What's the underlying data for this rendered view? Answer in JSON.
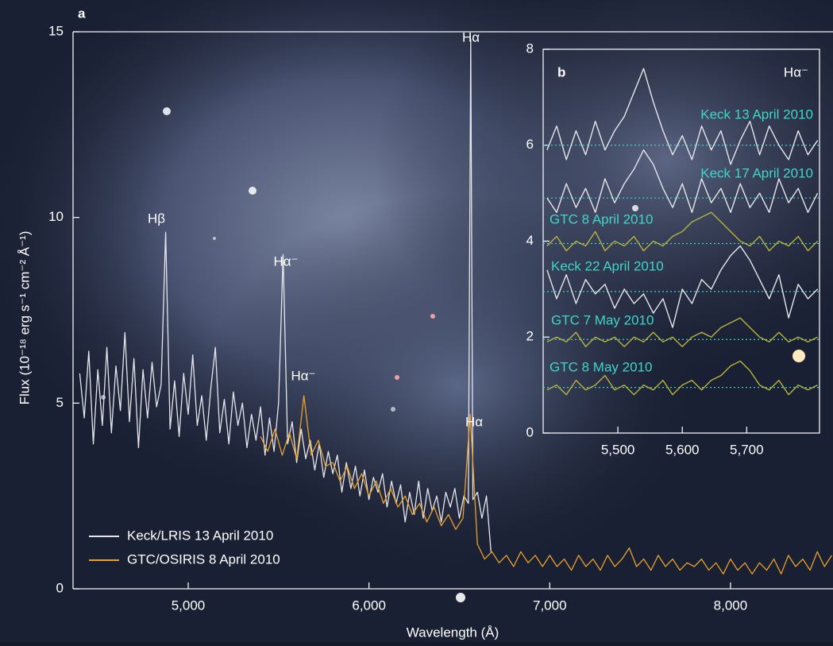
{
  "chart_data": [
    {
      "type": "line",
      "panel": "a",
      "x_label": "Wavelength (Å)",
      "y_label": "Flux (10⁻¹⁸ erg s⁻¹ cm⁻² Å⁻¹)",
      "xlim": [
        4363,
        8567
      ],
      "ylim": [
        0,
        15
      ],
      "xticks": [
        {
          "value": 5000,
          "label": "5,000"
        },
        {
          "value": 6000,
          "label": "6,000"
        },
        {
          "value": 7000,
          "label": "7,000"
        },
        {
          "value": 8000,
          "label": "8,000"
        }
      ],
      "yticks": [
        0,
        5,
        10,
        15
      ],
      "annotations": [
        "Hβ",
        "Hα⁻",
        "Hα",
        "Hα⁻",
        "Hα"
      ],
      "series": [
        {
          "name": "Keck/LRIS 13 April 2010",
          "color": "#e6e6ea",
          "x": [
            4400,
            4425,
            4450,
            4475,
            4500,
            4525,
            4550,
            4575,
            4600,
            4625,
            4650,
            4675,
            4700,
            4725,
            4750,
            4775,
            4800,
            4825,
            4850,
            4875,
            4900,
            4925,
            4950,
            4975,
            5000,
            5025,
            5050,
            5075,
            5100,
            5125,
            5150,
            5175,
            5200,
            5225,
            5250,
            5275,
            5300,
            5325,
            5350,
            5375,
            5400,
            5425,
            5450,
            5475,
            5500,
            5525,
            5550,
            5575,
            5600,
            5625,
            5650,
            5675,
            5700,
            5725,
            5750,
            5775,
            5800,
            5825,
            5850,
            5875,
            5900,
            5925,
            5950,
            5975,
            6000,
            6025,
            6050,
            6075,
            6100,
            6125,
            6150,
            6175,
            6200,
            6225,
            6250,
            6275,
            6300,
            6325,
            6350,
            6375,
            6400,
            6425,
            6450,
            6475,
            6500,
            6525,
            6550,
            6563,
            6575,
            6600,
            6625,
            6650,
            6675
          ],
          "values": [
            5.8,
            4.6,
            6.4,
            3.9,
            5.9,
            4.4,
            6.5,
            4.2,
            6.0,
            4.8,
            6.9,
            4.5,
            6.2,
            3.8,
            5.9,
            4.6,
            6.1,
            4.9,
            5.5,
            9.6,
            4.3,
            5.6,
            4.1,
            5.8,
            4.7,
            6.3,
            4.4,
            5.2,
            4.0,
            5.4,
            6.5,
            4.2,
            5.1,
            3.9,
            5.3,
            4.4,
            5.0,
            3.8,
            4.7,
            4.0,
            4.9,
            3.6,
            4.6,
            3.7,
            5.0,
            9.0,
            3.9,
            4.5,
            3.4,
            4.3,
            3.5,
            4.0,
            3.2,
            3.9,
            3.0,
            3.7,
            3.1,
            3.6,
            2.6,
            3.4,
            2.7,
            3.3,
            2.5,
            3.2,
            2.4,
            3.0,
            2.6,
            3.1,
            2.2,
            2.9,
            2.3,
            2.8,
            1.8,
            2.6,
            2.0,
            2.9,
            1.9,
            2.7,
            2.1,
            2.5,
            1.8,
            2.6,
            2.2,
            2.7,
            1.9,
            2.5,
            2.3,
            14.8,
            2.4,
            2.6,
            1.9,
            2.5,
            1.0
          ]
        },
        {
          "name": "GTC/OSIRIS 8 April 2010",
          "color": "#e8a12c",
          "x": [
            5400,
            5440,
            5480,
            5520,
            5560,
            5600,
            5640,
            5680,
            5720,
            5760,
            5800,
            5840,
            5880,
            5920,
            5960,
            6000,
            6040,
            6080,
            6120,
            6160,
            6200,
            6240,
            6280,
            6320,
            6360,
            6400,
            6440,
            6480,
            6520,
            6560,
            6600,
            6640,
            6680,
            6720,
            6760,
            6800,
            6840,
            6880,
            6920,
            6960,
            7000,
            7040,
            7080,
            7120,
            7160,
            7200,
            7240,
            7280,
            7320,
            7360,
            7400,
            7440,
            7480,
            7520,
            7560,
            7600,
            7640,
            7680,
            7720,
            7760,
            7800,
            7840,
            7880,
            7920,
            7960,
            8000,
            8040,
            8080,
            8120,
            8160,
            8200,
            8240,
            8280,
            8320,
            8360,
            8400,
            8440,
            8480,
            8520,
            8560
          ],
          "values": [
            4.1,
            3.7,
            4.3,
            3.6,
            4.2,
            3.5,
            5.2,
            3.6,
            4.0,
            3.3,
            3.4,
            2.9,
            3.3,
            2.7,
            3.1,
            2.5,
            2.9,
            2.3,
            2.7,
            2.2,
            2.5,
            2.0,
            2.3,
            1.8,
            2.2,
            1.7,
            2.0,
            1.6,
            1.9,
            4.7,
            1.2,
            0.8,
            1.0,
            0.7,
            0.9,
            0.6,
            1.0,
            0.7,
            0.9,
            0.6,
            0.9,
            0.6,
            0.8,
            0.5,
            0.9,
            0.6,
            0.8,
            0.5,
            0.9,
            0.6,
            0.8,
            1.1,
            0.6,
            0.8,
            0.5,
            0.9,
            0.6,
            0.8,
            0.5,
            0.7,
            0.6,
            0.8,
            0.5,
            0.7,
            0.4,
            0.8,
            0.5,
            0.7,
            0.4,
            0.7,
            0.5,
            0.8,
            0.4,
            0.9,
            0.6,
            0.8,
            0.5,
            1.0,
            0.6,
            0.9
          ]
        }
      ]
    },
    {
      "type": "line",
      "panel": "b",
      "annotations": [
        "Hα⁻"
      ],
      "xlim": [
        5384,
        5813
      ],
      "ylim": [
        0,
        8
      ],
      "xticks": [
        {
          "value": 5500,
          "label": "5,500"
        },
        {
          "value": 5600,
          "label": "5,600"
        },
        {
          "value": 5700,
          "label": "5,700"
        }
      ],
      "yticks": [
        0,
        2,
        4,
        6,
        8
      ],
      "x": [
        5390,
        5405,
        5420,
        5435,
        5450,
        5465,
        5480,
        5495,
        5510,
        5525,
        5540,
        5555,
        5570,
        5585,
        5600,
        5615,
        5630,
        5645,
        5660,
        5675,
        5690,
        5705,
        5720,
        5735,
        5750,
        5765,
        5780,
        5795,
        5810
      ],
      "series": [
        {
          "name": "Keck 13 April 2010",
          "color": "#e6e6ea",
          "baseline": 6.0,
          "values": [
            5.9,
            6.4,
            5.7,
            6.3,
            5.8,
            6.5,
            5.9,
            6.3,
            6.6,
            7.1,
            7.6,
            6.9,
            6.3,
            5.8,
            6.2,
            5.7,
            6.4,
            5.9,
            6.3,
            5.6,
            6.1,
            6.5,
            5.8,
            6.4,
            6.0,
            5.7,
            6.3,
            5.8,
            6.1
          ]
        },
        {
          "name": "Keck 17 April 2010",
          "color": "#e6e6ea",
          "baseline": 4.9,
          "values": [
            4.9,
            4.6,
            5.2,
            4.7,
            5.1,
            4.6,
            5.3,
            4.8,
            5.2,
            5.5,
            5.9,
            5.6,
            5.1,
            4.7,
            5.2,
            4.6,
            5.3,
            4.8,
            5.1,
            4.6,
            5.2,
            4.7,
            5.0,
            4.6,
            5.3,
            4.8,
            5.1,
            4.6,
            5.0
          ]
        },
        {
          "name": "GTC 8 April 2010",
          "color": "#b9b23c",
          "baseline": 3.95,
          "values": [
            3.9,
            4.1,
            3.8,
            4.0,
            3.9,
            4.2,
            3.8,
            4.0,
            3.9,
            4.1,
            3.8,
            4.0,
            3.9,
            4.1,
            4.2,
            4.4,
            4.5,
            4.6,
            4.4,
            4.2,
            4.0,
            3.9,
            4.1,
            3.8,
            4.0,
            3.9,
            4.1,
            3.8,
            4.0
          ]
        },
        {
          "name": "Keck 22 April 2010",
          "color": "#e6e6ea",
          "baseline": 2.95,
          "values": [
            3.4,
            2.8,
            3.3,
            2.7,
            3.2,
            2.9,
            3.1,
            2.6,
            3.0,
            2.7,
            2.9,
            2.5,
            2.8,
            2.2,
            3.0,
            2.7,
            3.2,
            3.0,
            3.4,
            3.7,
            3.9,
            3.6,
            3.2,
            2.8,
            3.3,
            2.4,
            3.1,
            2.8,
            3.0
          ]
        },
        {
          "name": "GTC 7 May 2010",
          "color": "#b9b23c",
          "baseline": 1.95,
          "values": [
            1.9,
            2.0,
            1.9,
            2.1,
            1.8,
            2.0,
            1.9,
            2.0,
            1.8,
            2.0,
            1.9,
            2.1,
            1.9,
            2.0,
            1.8,
            2.0,
            2.1,
            2.0,
            2.2,
            2.3,
            2.4,
            2.2,
            2.0,
            1.9,
            2.1,
            1.9,
            2.0,
            1.9,
            2.0
          ]
        },
        {
          "name": "GTC 8 May 2010",
          "color": "#b9b23c",
          "baseline": 0.95,
          "values": [
            0.9,
            1.0,
            0.8,
            1.1,
            0.9,
            1.0,
            1.2,
            0.9,
            1.0,
            0.8,
            1.0,
            0.9,
            1.1,
            0.8,
            1.0,
            1.1,
            0.9,
            1.1,
            1.2,
            1.4,
            1.5,
            1.3,
            1.0,
            0.9,
            1.1,
            0.8,
            1.0,
            0.9,
            1.0
          ]
        }
      ]
    }
  ]
}
